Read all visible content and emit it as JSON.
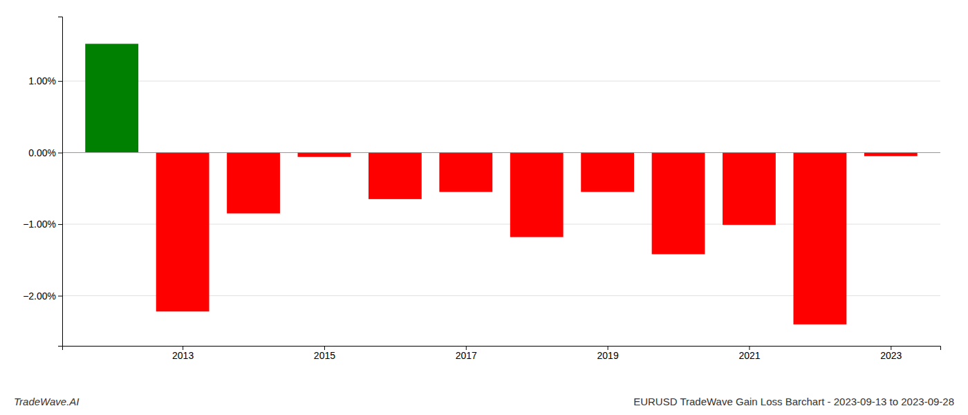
{
  "chart_data": {
    "type": "bar",
    "title": "EURUSD TradeWave Gain Loss Barchart - 2023-09-13 to 2023-09-28",
    "annotations": [
      "TradeWave.AI"
    ],
    "x": [
      2012,
      2013,
      2014,
      2015,
      2016,
      2017,
      2018,
      2019,
      2020,
      2021,
      2022,
      2023
    ],
    "values": [
      1.52,
      -2.22,
      -0.85,
      -0.06,
      -0.65,
      -0.55,
      -1.18,
      -0.55,
      -1.42,
      -1.01,
      -2.4,
      -0.05
    ],
    "colors": [
      "#008000",
      "#ff0000",
      "#ff0000",
      "#ff0000",
      "#ff0000",
      "#ff0000",
      "#ff0000",
      "#ff0000",
      "#ff0000",
      "#ff0000",
      "#ff0000",
      "#ff0000"
    ],
    "xlim": [
      2011.3,
      2023.7
    ],
    "xticks": [
      2013,
      2015,
      2017,
      2019,
      2021,
      2023
    ],
    "ylim": [
      -2.7,
      1.9
    ],
    "yticks": [
      {
        "value": -2.0,
        "label": "−2.00%"
      },
      {
        "value": -1.0,
        "label": "−1.00%"
      },
      {
        "value": 0.0,
        "label": "0.00%"
      },
      {
        "value": 1.0,
        "label": "1.00%"
      }
    ],
    "grid": true
  }
}
